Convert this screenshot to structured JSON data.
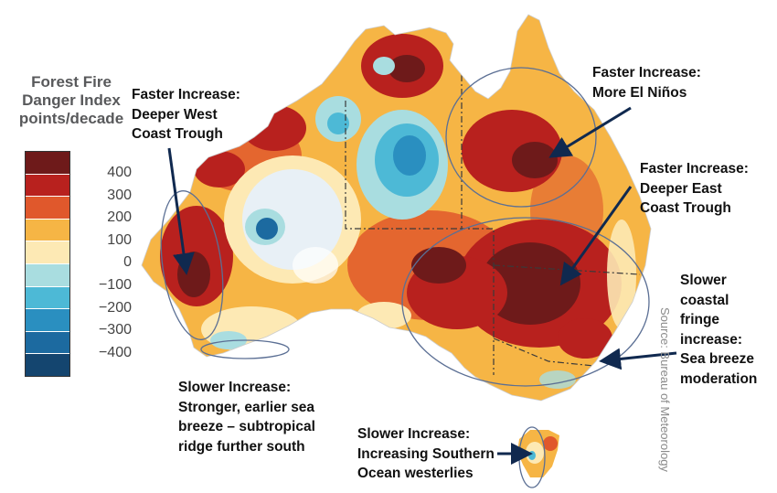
{
  "legend": {
    "title_lines": [
      "Forest Fire",
      "Danger Index",
      "points/decade"
    ],
    "labels": [
      "400",
      "300",
      "200",
      "100",
      "0",
      "−100",
      "−200",
      "−300",
      "−400"
    ],
    "colors": [
      "#6e1a1a",
      "#b8211e",
      "#e0582c",
      "#f6b545",
      "#fde9b4",
      "#a9dde0",
      "#4db9d6",
      "#2a8fc0",
      "#1c6aa0",
      "#14456f"
    ]
  },
  "annotations": {
    "west": [
      "Faster Increase:",
      "Deeper West",
      "Coast Trough"
    ],
    "elnino": [
      "Faster Increase:",
      "More El Niños"
    ],
    "east": [
      "Faster Increase:",
      "Deeper East",
      "Coast Trough"
    ],
    "coastal": [
      "Slower",
      "coastal",
      "fringe",
      "increase:",
      "Sea breeze",
      "moderation"
    ],
    "southwest": [
      "Slower Increase:",
      "Stronger, earlier sea",
      "breeze – subtropical",
      "ridge further south"
    ],
    "tasmania": [
      "Slower Increase:",
      "Increasing Southern",
      "Ocean westerlies"
    ]
  },
  "source": "Source: Bureau of Meteorology",
  "colors": {
    "arrow": "#10294f",
    "ellipse": "#5b6f94",
    "border_line": "#3a3a3a"
  }
}
